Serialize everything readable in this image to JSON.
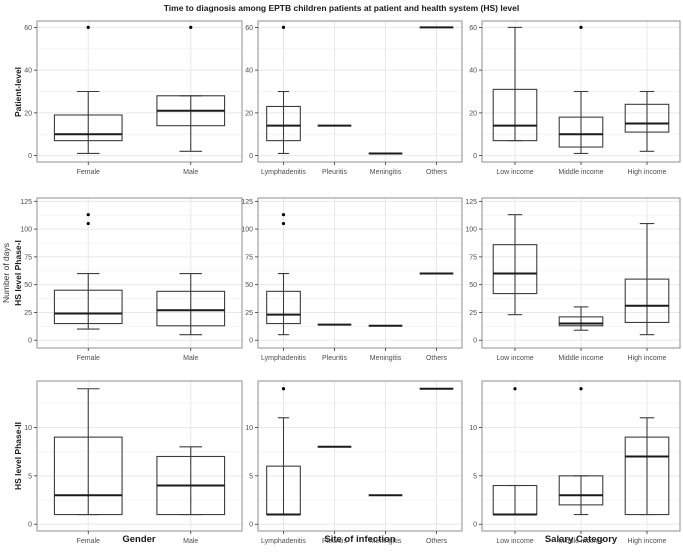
{
  "chart_data": {
    "type": "boxplot",
    "title": "Time to diagnosis among EPTB children patients at patient and health system (HS) level",
    "outer_ylabel": "Number of days",
    "legend": "none",
    "grid_on": true,
    "rows": [
      {
        "label": "Patient-level",
        "yticks": [
          0,
          20,
          40,
          60
        ],
        "ylim": [
          -3,
          63
        ]
      },
      {
        "label": "HS level Phase-I",
        "yticks": [
          0,
          25,
          50,
          75,
          100,
          125
        ],
        "ylim": [
          -7,
          128
        ]
      },
      {
        "label": "HS level Phase-II",
        "yticks": [
          0,
          5,
          10
        ],
        "ylim": [
          -0.7,
          14.8
        ]
      }
    ],
    "cols": [
      {
        "xlabel": "Gender",
        "categories": [
          "Female",
          "Male"
        ]
      },
      {
        "xlabel": "Site of infection",
        "categories": [
          "Lymphadenitis",
          "Pleuritis",
          "Meningitis",
          "Others"
        ]
      },
      {
        "xlabel": "Salary Category",
        "categories": [
          "Low income",
          "Middle income",
          "High income"
        ]
      }
    ],
    "panels": [
      {
        "row": 0,
        "col": 0,
        "boxes": [
          {
            "low": 1,
            "q1": 7,
            "med": 10,
            "q3": 19,
            "high": 30,
            "outliers": [
              60
            ]
          },
          {
            "low": 2,
            "q1": 14,
            "med": 21,
            "q3": 28,
            "high": 28,
            "outliers": [
              60
            ]
          }
        ]
      },
      {
        "row": 0,
        "col": 1,
        "boxes": [
          {
            "low": 1,
            "q1": 7,
            "med": 14,
            "q3": 23,
            "high": 30,
            "outliers": [
              60
            ]
          },
          {
            "low": 14,
            "q1": 14,
            "med": 14,
            "q3": 14,
            "high": 14,
            "outliers": []
          },
          {
            "low": 1,
            "q1": 1,
            "med": 1,
            "q3": 1,
            "high": 1,
            "outliers": []
          },
          {
            "low": 60,
            "q1": 60,
            "med": 60,
            "q3": 60,
            "high": 60,
            "outliers": []
          }
        ]
      },
      {
        "row": 0,
        "col": 2,
        "boxes": [
          {
            "low": 7,
            "q1": 7,
            "med": 14,
            "q3": 31,
            "high": 60,
            "outliers": []
          },
          {
            "low": 1,
            "q1": 4,
            "med": 10,
            "q3": 18,
            "high": 30,
            "outliers": [
              60
            ]
          },
          {
            "low": 2,
            "q1": 11,
            "med": 15,
            "q3": 24,
            "high": 30,
            "outliers": []
          }
        ]
      },
      {
        "row": 1,
        "col": 0,
        "boxes": [
          {
            "low": 10,
            "q1": 15,
            "med": 24,
            "q3": 45,
            "high": 60,
            "outliers": [
              105,
              113
            ]
          },
          {
            "low": 5,
            "q1": 13,
            "med": 27,
            "q3": 44,
            "high": 60,
            "outliers": []
          }
        ]
      },
      {
        "row": 1,
        "col": 1,
        "boxes": [
          {
            "low": 5,
            "q1": 15,
            "med": 23,
            "q3": 44,
            "high": 60,
            "outliers": [
              105,
              113
            ]
          },
          {
            "low": 14,
            "q1": 14,
            "med": 14,
            "q3": 14,
            "high": 14,
            "outliers": []
          },
          {
            "low": 13,
            "q1": 13,
            "med": 13,
            "q3": 13,
            "high": 13,
            "outliers": []
          },
          {
            "low": 60,
            "q1": 60,
            "med": 60,
            "q3": 60,
            "high": 60,
            "outliers": []
          }
        ]
      },
      {
        "row": 1,
        "col": 2,
        "boxes": [
          {
            "low": 23,
            "q1": 42,
            "med": 60,
            "q3": 86,
            "high": 113,
            "outliers": []
          },
          {
            "low": 9,
            "q1": 13,
            "med": 15,
            "q3": 21,
            "high": 30,
            "outliers": []
          },
          {
            "low": 5,
            "q1": 16,
            "med": 31,
            "q3": 55,
            "high": 105,
            "outliers": []
          }
        ]
      },
      {
        "row": 2,
        "col": 0,
        "boxes": [
          {
            "low": 1,
            "q1": 1,
            "med": 3,
            "q3": 9,
            "high": 14,
            "outliers": []
          },
          {
            "low": 1,
            "q1": 1,
            "med": 4,
            "q3": 7,
            "high": 8,
            "outliers": []
          }
        ]
      },
      {
        "row": 2,
        "col": 1,
        "boxes": [
          {
            "low": 1,
            "q1": 1,
            "med": 1,
            "q3": 6,
            "high": 11,
            "outliers": [
              14
            ]
          },
          {
            "low": 8,
            "q1": 8,
            "med": 8,
            "q3": 8,
            "high": 8,
            "outliers": []
          },
          {
            "low": 3,
            "q1": 3,
            "med": 3,
            "q3": 3,
            "high": 3,
            "outliers": []
          },
          {
            "low": 14,
            "q1": 14,
            "med": 14,
            "q3": 14,
            "high": 14,
            "outliers": []
          }
        ]
      },
      {
        "row": 2,
        "col": 2,
        "boxes": [
          {
            "low": 1,
            "q1": 1,
            "med": 1,
            "q3": 4,
            "high": 4,
            "outliers": [
              14
            ]
          },
          {
            "low": 1,
            "q1": 2,
            "med": 3,
            "q3": 5,
            "high": 5,
            "outliers": [
              14
            ]
          },
          {
            "low": 1,
            "q1": 1,
            "med": 7,
            "q3": 9,
            "high": 11,
            "outliers": []
          }
        ]
      }
    ],
    "colors": {
      "background": "#ffffff",
      "panel_border": "#8f8f8f",
      "grid_major": "#e8e8e8",
      "grid_minor": "#f4f4f4",
      "box_stroke": "#3d3d3d",
      "median": "#1a1a1a",
      "outlier": "#000000",
      "tick_label": "#4d4d4d",
      "tick_mark": "#333333"
    }
  }
}
